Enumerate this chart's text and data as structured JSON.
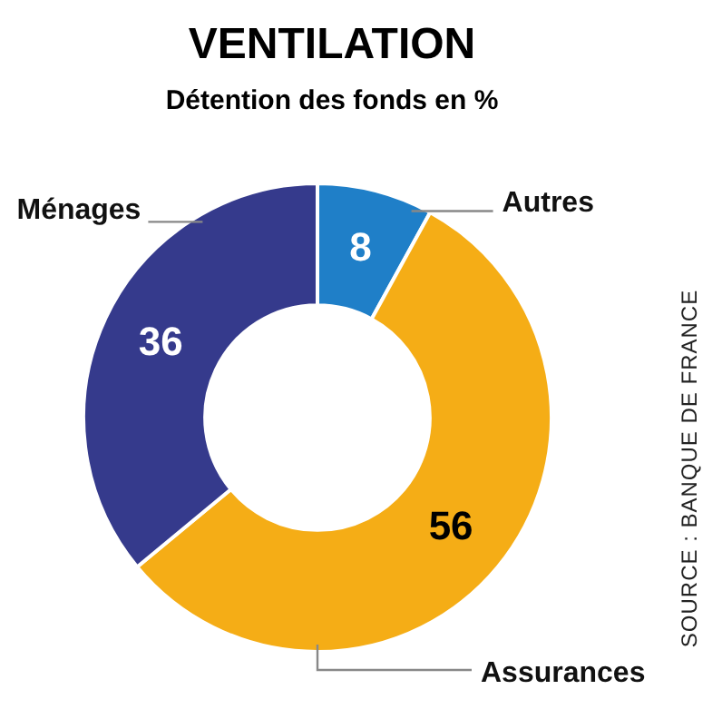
{
  "chart_data": {
    "type": "donut",
    "title": "VENTILATION",
    "subtitle": "Détention des fonds en %",
    "categories": [
      "Autres",
      "Assurances",
      "Ménages"
    ],
    "values": [
      8,
      56,
      36
    ],
    "colors": [
      "#1f7fc8",
      "#f5ad16",
      "#353a8c"
    ],
    "data_labels": true,
    "legend": false,
    "annotations": [
      "SOURCE : BANQUE DE FRANCE"
    ]
  }
}
